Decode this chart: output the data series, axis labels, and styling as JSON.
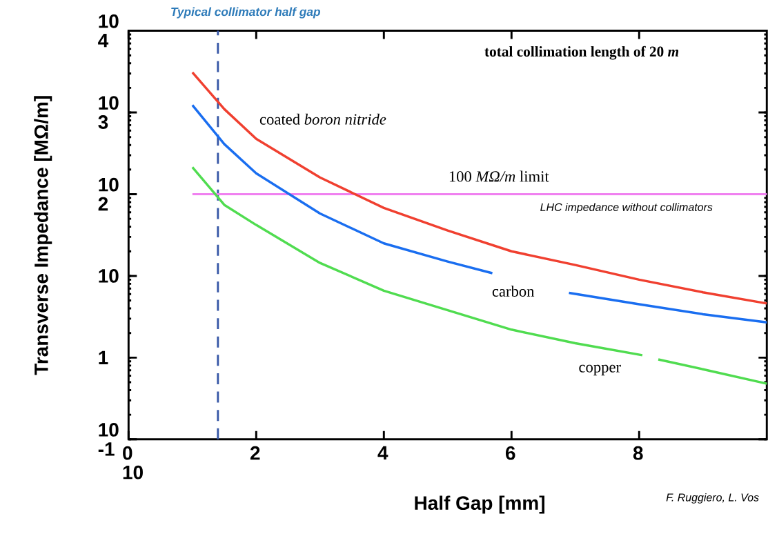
{
  "chart_data": {
    "type": "line",
    "xlabel": "Half Gap [mm]",
    "ylabel": "Transverse Impedance [MΩ/m]",
    "log": "y",
    "xlim": [
      0,
      10
    ],
    "ylim": [
      0.1,
      10000
    ],
    "xticks": [
      {
        "value": 0,
        "label": "0 10"
      },
      2,
      4,
      6,
      8
    ],
    "yticks": [
      {
        "value": 0.1,
        "label": "10 -1"
      },
      1,
      10,
      {
        "value": 100,
        "label": "10 2"
      },
      {
        "value": 1000,
        "label": "10 3"
      },
      {
        "value": 10000,
        "label": "10 4"
      }
    ],
    "series": [
      {
        "name": "coated *boron nitride*",
        "color": "#f04030",
        "x": [
          1,
          1.5,
          2,
          3,
          4,
          5,
          6,
          7,
          8,
          9,
          10
        ],
        "values": [
          3100,
          1100,
          475,
          160,
          68,
          36,
          20,
          13.6,
          9,
          6.3,
          4.6
        ]
      },
      {
        "name": "carbon",
        "color": "#1a6ef0",
        "x": [
          1,
          1.5,
          2,
          3,
          4,
          5,
          5.7,
          6.3,
          6.9,
          8,
          9,
          10
        ],
        "values": [
          1230,
          410,
          180,
          58,
          25,
          15,
          10.8,
          null,
          6.2,
          4.5,
          3.4,
          2.7
        ]
      },
      {
        "name": "copper",
        "color": "#50dc50",
        "x": [
          1,
          1.5,
          2,
          3,
          4,
          5,
          6,
          7,
          8.05,
          8.2,
          8.3,
          9,
          10
        ],
        "values": [
          214,
          74,
          42,
          14.4,
          6.6,
          3.8,
          2.2,
          1.5,
          1.07,
          null,
          0.95,
          0.72,
          0.48
        ]
      }
    ],
    "ref_lines": [
      {
        "axis": "x",
        "value": 1.4,
        "label": "Typical collimator half gap",
        "color": "#3a5aa8",
        "line_style": "dashed"
      },
      {
        "axis": "y",
        "value": 100,
        "label": "100 *MΩ/m* limit",
        "color": "#f080f0",
        "line_style": "solid"
      }
    ],
    "annotations": [
      "total collimation length of 20 *m*",
      {
        "text": "LHC impedance without collimators",
        "x": 7.8,
        "y": 100
      },
      "F. Ruggiero, L. Vos"
    ]
  }
}
